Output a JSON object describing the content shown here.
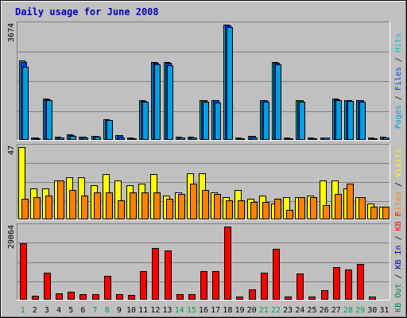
{
  "title": "Daily usage for June 2008",
  "colors": {
    "background": "#C0C0C0",
    "panel": "#C0C0C0",
    "title": "#0000C0",
    "hits": "#00A0E0",
    "files": "#0040FF",
    "pages": "#00C0C0",
    "visits": "#FFFF00",
    "sites": "#FF8000",
    "kbin": "#0000C0",
    "kbout": "#008040",
    "kbf": "#FF0000",
    "weekend_label": "#00A050"
  },
  "chart_data": {
    "type": "bar",
    "title": "Daily usage for June 2008",
    "categories": [
      "1",
      "2",
      "3",
      "4",
      "5",
      "6",
      "7",
      "8",
      "9",
      "10",
      "11",
      "12",
      "13",
      "14",
      "15",
      "16",
      "17",
      "18",
      "19",
      "20",
      "21",
      "22",
      "23",
      "24",
      "25",
      "26",
      "27",
      "28",
      "29",
      "30",
      "31"
    ],
    "weekend_days": [
      "1",
      "7",
      "8",
      "14",
      "15",
      "21",
      "22",
      "28",
      "29"
    ],
    "panels": [
      {
        "name": "hits-files-pages",
        "max_label": "3674",
        "ymax": 3674,
        "legend": [
          {
            "text": "Hits",
            "color": "#00C0C0"
          },
          {
            "text": " / ",
            "color": "#000000"
          },
          {
            "text": "Files",
            "color": "#0040FF"
          },
          {
            "text": " / ",
            "color": "#000000"
          },
          {
            "text": "Pages",
            "color": "#00A0E0"
          }
        ],
        "series": [
          {
            "name": "Hits",
            "color": "#00C0C0",
            "values": [
              2530,
              40,
              1300,
              70,
              150,
              75,
              110,
              650,
              130,
              40,
              1260,
              2480,
              2480,
              70,
              70,
              1260,
              1260,
              3674,
              40,
              100,
              1260,
              2480,
              40,
              1260,
              40,
              60,
              1300,
              1260,
              1260,
              40,
              70
            ]
          },
          {
            "name": "Files",
            "color": "#0040FF",
            "values": [
              2480,
              40,
              1280,
              60,
              140,
              70,
              100,
              620,
              120,
              35,
              1230,
              2450,
              2450,
              60,
              60,
              1240,
              1240,
              3640,
              35,
              90,
              1240,
              2450,
              35,
              1240,
              35,
              50,
              1270,
              1240,
              1240,
              35,
              60
            ]
          },
          {
            "name": "Pages",
            "color": "#00A0E0",
            "values": [
              2330,
              30,
              1240,
              50,
              100,
              60,
              80,
              600,
              60,
              30,
              1200,
              2400,
              2380,
              50,
              50,
              1200,
              1180,
              3600,
              30,
              60,
              1200,
              2400,
              30,
              1200,
              30,
              40,
              1250,
              1220,
              1200,
              30,
              40
            ]
          }
        ]
      },
      {
        "name": "sites-visits",
        "max_label": "47",
        "ymax": 47,
        "legend": [
          {
            "text": "Visits",
            "color": "#FFFF00"
          },
          {
            "text": " / ",
            "color": "#000000"
          },
          {
            "text": "Sites",
            "color": "#FF8000"
          }
        ],
        "series": [
          {
            "name": "Visits",
            "color": "#FFFF00",
            "values": [
              47,
              20,
              20,
              25,
              27,
              27,
              22,
              29,
              25,
              22,
              23,
              29,
              15,
              17,
              30,
              30,
              17,
              14,
              19,
              13,
              15,
              10,
              14,
              14,
              15,
              25,
              25,
              20,
              14,
              10,
              8
            ]
          },
          {
            "name": "Sites",
            "color": "#FF8000",
            "values": [
              13,
              14,
              15,
              25,
              19,
              15,
              17,
              17,
              12,
              17,
              17,
              17,
              13,
              16,
              23,
              19,
              16,
              12,
              12,
              11,
              11,
              13,
              6,
              14,
              14,
              9,
              16,
              23,
              14,
              8,
              8
            ]
          }
        ]
      },
      {
        "name": "kb",
        "max_label": "29064",
        "ymax": 29064,
        "legend": [
          {
            "text": "KB F",
            "color": "#FF0000"
          },
          {
            "text": " / ",
            "color": "#000000"
          },
          {
            "text": "KB In",
            "color": "#0000C0"
          },
          {
            "text": " / ",
            "color": "#000000"
          },
          {
            "text": "KB Out",
            "color": "#008040"
          }
        ],
        "series": [
          {
            "name": "KB F",
            "color": "#FF0000",
            "values": [
              22500,
              1200,
              10600,
              2200,
              2900,
              1800,
              1800,
              9200,
              1800,
              1500,
              11100,
              20300,
              19600,
              1800,
              1800,
              11200,
              11200,
              29064,
              1000,
              3700,
              10500,
              20100,
              1000,
              10300,
              1000,
              3500,
              12900,
              11900,
              13900,
              1000,
              0
            ]
          }
        ]
      }
    ]
  }
}
